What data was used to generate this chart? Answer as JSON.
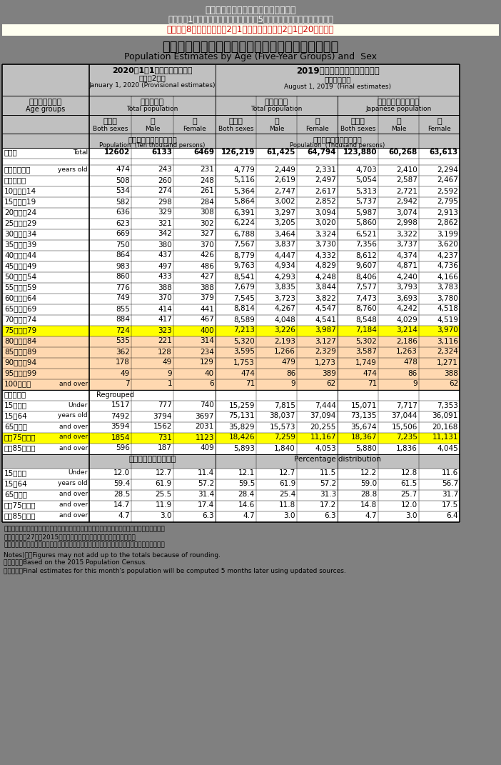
{
  "title1": "総務省統計局　人口推計の結果の概要",
  "title2": "Ｉ．各月1日現在人口　「全国：年齢（5歳階級），男女別人口」統計表",
  "title3": "令和元年8月確定値、令和2年1月概算値　（令和2年1月20日公表）",
  "main_title_ja": "年　齢（５　歳　階　級），　男　女　別　人　口",
  "main_title_en": "Population Estimates by Age (Five-Year Groups) and  Sex",
  "col_header_left_line1": "2020年1月1日現在（概算値）",
  "col_header_left_line2": "（令和2年）",
  "col_header_left_line3": "January 1, 2020 (Provisional estimates)",
  "col_header_right_line1": "2019年８月１日現在（確定値）",
  "col_header_right_line2": "（令和元年）",
  "col_header_right_line3": "August 1, 2019  (Final estimates)",
  "row_header_line1": "年　齢　階　級",
  "row_header_line2": "Age groups",
  "total_pop_ja": "総　人　口",
  "total_pop_en": "Total population",
  "jpn_pop_ja": "日　本　人　人　口",
  "jpn_pop_en": "Japanese population",
  "both_sexes_ja": "男女計",
  "both_sexes_en": "Both sexes",
  "male_ja": "男",
  "male_en": "Male",
  "female_ja": "女",
  "female_en": "Female",
  "unit_left_ja": "人　口　（単位　万人）",
  "unit_left_en": "Population  (Ten thousand persons)",
  "unit_right_ja": "人　口　（単位　千人）",
  "unit_right_en": "Population  (Thousand persons)",
  "bg_gray": "#808080",
  "bg_lgray": "#c0c0c0",
  "bg_white": "#ffffff",
  "bg_yellow": "#ffff00",
  "bg_peach": "#ffd8b0",
  "bg_cream": "#fffacd",
  "text_red": "#cc0000",
  "rows": [
    {
      "lj": "総　数",
      "le": "Total",
      "bold": true,
      "bg": "white",
      "v": [
        "12602",
        "6133",
        "6469",
        "126,219",
        "61,425",
        "64,794",
        "123,880",
        "60,268",
        "63,613"
      ]
    },
    {
      "lj": "０　〜　４歳",
      "le": "years old",
      "bold": false,
      "bg": "white",
      "v": [
        "474",
        "243",
        "231",
        "4,779",
        "2,449",
        "2,331",
        "4,703",
        "2,410",
        "2,294"
      ]
    },
    {
      "lj": "５　〜　９",
      "le": "",
      "bold": false,
      "bg": "white",
      "v": [
        "508",
        "260",
        "248",
        "5,116",
        "2,619",
        "2,497",
        "5,054",
        "2,587",
        "2,467"
      ]
    },
    {
      "lj": "10　〜　14",
      "le": "",
      "bold": false,
      "bg": "white",
      "v": [
        "534",
        "274",
        "261",
        "5,364",
        "2,747",
        "2,617",
        "5,313",
        "2,721",
        "2,592"
      ]
    },
    {
      "lj": "15　〜　19",
      "le": "",
      "bold": false,
      "bg": "white",
      "v": [
        "582",
        "298",
        "284",
        "5,864",
        "3,002",
        "2,852",
        "5,737",
        "2,942",
        "2,795"
      ]
    },
    {
      "lj": "20　〜　24",
      "le": "",
      "bold": false,
      "bg": "white",
      "v": [
        "636",
        "329",
        "308",
        "6,391",
        "3,297",
        "3,094",
        "5,987",
        "3,074",
        "2,913"
      ]
    },
    {
      "lj": "25　〜　29",
      "le": "",
      "bold": false,
      "bg": "white",
      "v": [
        "623",
        "321",
        "302",
        "6,224",
        "3,205",
        "3,020",
        "5,860",
        "2,998",
        "2,862"
      ]
    },
    {
      "lj": "30　〜　34",
      "le": "",
      "bold": false,
      "bg": "white",
      "v": [
        "669",
        "342",
        "327",
        "6,788",
        "3,464",
        "3,324",
        "6,521",
        "3,322",
        "3,199"
      ]
    },
    {
      "lj": "35　〜　39",
      "le": "",
      "bold": false,
      "bg": "white",
      "v": [
        "750",
        "380",
        "370",
        "7,567",
        "3,837",
        "3,730",
        "7,356",
        "3,737",
        "3,620"
      ]
    },
    {
      "lj": "40　〜　44",
      "le": "",
      "bold": false,
      "bg": "white",
      "v": [
        "864",
        "437",
        "426",
        "8,779",
        "4,447",
        "4,332",
        "8,612",
        "4,374",
        "4,237"
      ]
    },
    {
      "lj": "45　〜　49",
      "le": "",
      "bold": false,
      "bg": "white",
      "v": [
        "983",
        "497",
        "486",
        "9,763",
        "4,934",
        "4,829",
        "9,607",
        "4,871",
        "4,736"
      ]
    },
    {
      "lj": "50　〜　54",
      "le": "",
      "bold": false,
      "bg": "white",
      "v": [
        "860",
        "433",
        "427",
        "8,541",
        "4,293",
        "4,248",
        "8,406",
        "4,240",
        "4,166"
      ]
    },
    {
      "lj": "55　〜　59",
      "le": "",
      "bold": false,
      "bg": "white",
      "v": [
        "776",
        "388",
        "388",
        "7,679",
        "3,835",
        "3,844",
        "7,577",
        "3,793",
        "3,783"
      ]
    },
    {
      "lj": "60　〜　64",
      "le": "",
      "bold": false,
      "bg": "white",
      "v": [
        "749",
        "370",
        "379",
        "7,545",
        "3,723",
        "3,822",
        "7,473",
        "3,693",
        "3,780"
      ]
    },
    {
      "lj": "65　〜　69",
      "le": "",
      "bold": false,
      "bg": "white",
      "v": [
        "855",
        "414",
        "441",
        "8,814",
        "4,267",
        "4,547",
        "8,760",
        "4,242",
        "4,518"
      ]
    },
    {
      "lj": "70　〜　74",
      "le": "",
      "bold": false,
      "bg": "white",
      "v": [
        "884",
        "417",
        "467",
        "8,589",
        "4,048",
        "4,541",
        "8,548",
        "4,029",
        "4,519"
      ]
    },
    {
      "lj": "75　〜　79",
      "le": "",
      "bold": false,
      "bg": "yellow",
      "v": [
        "724",
        "323",
        "400",
        "7,213",
        "3,226",
        "3,987",
        "7,184",
        "3,214",
        "3,970"
      ]
    },
    {
      "lj": "80　〜　84",
      "le": "",
      "bold": false,
      "bg": "peach",
      "v": [
        "535",
        "221",
        "314",
        "5,320",
        "2,193",
        "3,127",
        "5,302",
        "2,186",
        "3,116"
      ]
    },
    {
      "lj": "85　〜　89",
      "le": "",
      "bold": false,
      "bg": "peach",
      "v": [
        "362",
        "128",
        "234",
        "3,595",
        "1,266",
        "2,329",
        "3,587",
        "1,263",
        "2,324"
      ]
    },
    {
      "lj": "90　〜　94",
      "le": "",
      "bold": false,
      "bg": "peach",
      "v": [
        "178",
        "49",
        "129",
        "1,753",
        "479",
        "1,273",
        "1,749",
        "478",
        "1,271"
      ]
    },
    {
      "lj": "95　〜　99",
      "le": "",
      "bold": false,
      "bg": "peach",
      "v": [
        "49",
        "9",
        "40",
        "474",
        "86",
        "389",
        "474",
        "86",
        "388"
      ]
    },
    {
      "lj": "100歳以上",
      "le": "and over",
      "bold": false,
      "bg": "peach",
      "v": [
        "7",
        "1",
        "6",
        "71",
        "9",
        "62",
        "71",
        "9",
        "62"
      ]
    }
  ],
  "regroup_rows": [
    {
      "lj": "（再　掲）",
      "le": "Regrouped",
      "header": true,
      "bg": "white",
      "v": []
    },
    {
      "lj": "15歳未満",
      "le": "Under",
      "bg": "white",
      "v": [
        "1517",
        "777",
        "740",
        "15,259",
        "7,815",
        "7,444",
        "15,071",
        "7,717",
        "7,353"
      ]
    },
    {
      "lj": "15〜64",
      "le": "years old",
      "bg": "white",
      "v": [
        "7492",
        "3794",
        "3697",
        "75,131",
        "38,037",
        "37,094",
        "73,135",
        "37,044",
        "36,091"
      ]
    },
    {
      "lj": "65歳以上",
      "le": "and over",
      "bg": "white",
      "v": [
        "3594",
        "1562",
        "2031",
        "35,829",
        "15,573",
        "20,255",
        "35,674",
        "15,506",
        "20,168"
      ]
    },
    {
      "lj": "うち75歳以上",
      "le": "and over",
      "bg": "yellow",
      "v": [
        "1854",
        "731",
        "1123",
        "18,426",
        "7,259",
        "11,167",
        "18,367",
        "7,235",
        "11,131"
      ]
    },
    {
      "lj": "うち85歳以上",
      "le": "and over",
      "bg": "white",
      "v": [
        "596",
        "187",
        "409",
        "5,893",
        "1,840",
        "4,053",
        "5,880",
        "1,836",
        "4,045"
      ]
    }
  ],
  "perc_rows": [
    {
      "lj": "15歳未満",
      "le": "Under",
      "bg": "white",
      "v": [
        "12.0",
        "12.7",
        "11.4",
        "12.1",
        "12.7",
        "11.5",
        "12.2",
        "12.8",
        "11.6"
      ]
    },
    {
      "lj": "15〜64",
      "le": "years old",
      "bg": "white",
      "v": [
        "59.4",
        "61.9",
        "57.2",
        "59.5",
        "61.9",
        "57.2",
        "59.0",
        "61.5",
        "56.7"
      ]
    },
    {
      "lj": "65歳以上",
      "le": "and over",
      "bg": "white",
      "v": [
        "28.5",
        "25.5",
        "31.4",
        "28.4",
        "25.4",
        "31.3",
        "28.8",
        "25.7",
        "31.7"
      ]
    },
    {
      "lj": "うち75歳以上",
      "le": "and over",
      "bg": "white",
      "v": [
        "14.7",
        "11.9",
        "17.4",
        "14.6",
        "11.8",
        "17.2",
        "14.8",
        "12.0",
        "17.5"
      ]
    },
    {
      "lj": "うち85歳以上",
      "le": "and over",
      "bg": "white",
      "v": [
        "4.7",
        "3.0",
        "6.3",
        "4.7",
        "3.0",
        "6.3",
        "4.7",
        "3.0",
        "6.4"
      ]
    }
  ],
  "notes_ja": [
    "注）　・単位未満は四捨五入しているため，合計の数字と内訳の計が一致しない場合がある。",
    "　　　・平成27年（2015年）国勢調査による人口を基準としている。",
    "　　　・当月分の人口（概算値）は，算出用データの更新に伴い，５か月後に確定値となる。"
  ],
  "notes_en": [
    "Notes)　・Figures may not add up to the totals because of rounding.",
    "　　　　・Based on the 2015 Population Census.",
    "　　　　・Final estimates for this month's population will be computed 5 months later using updated sources."
  ]
}
